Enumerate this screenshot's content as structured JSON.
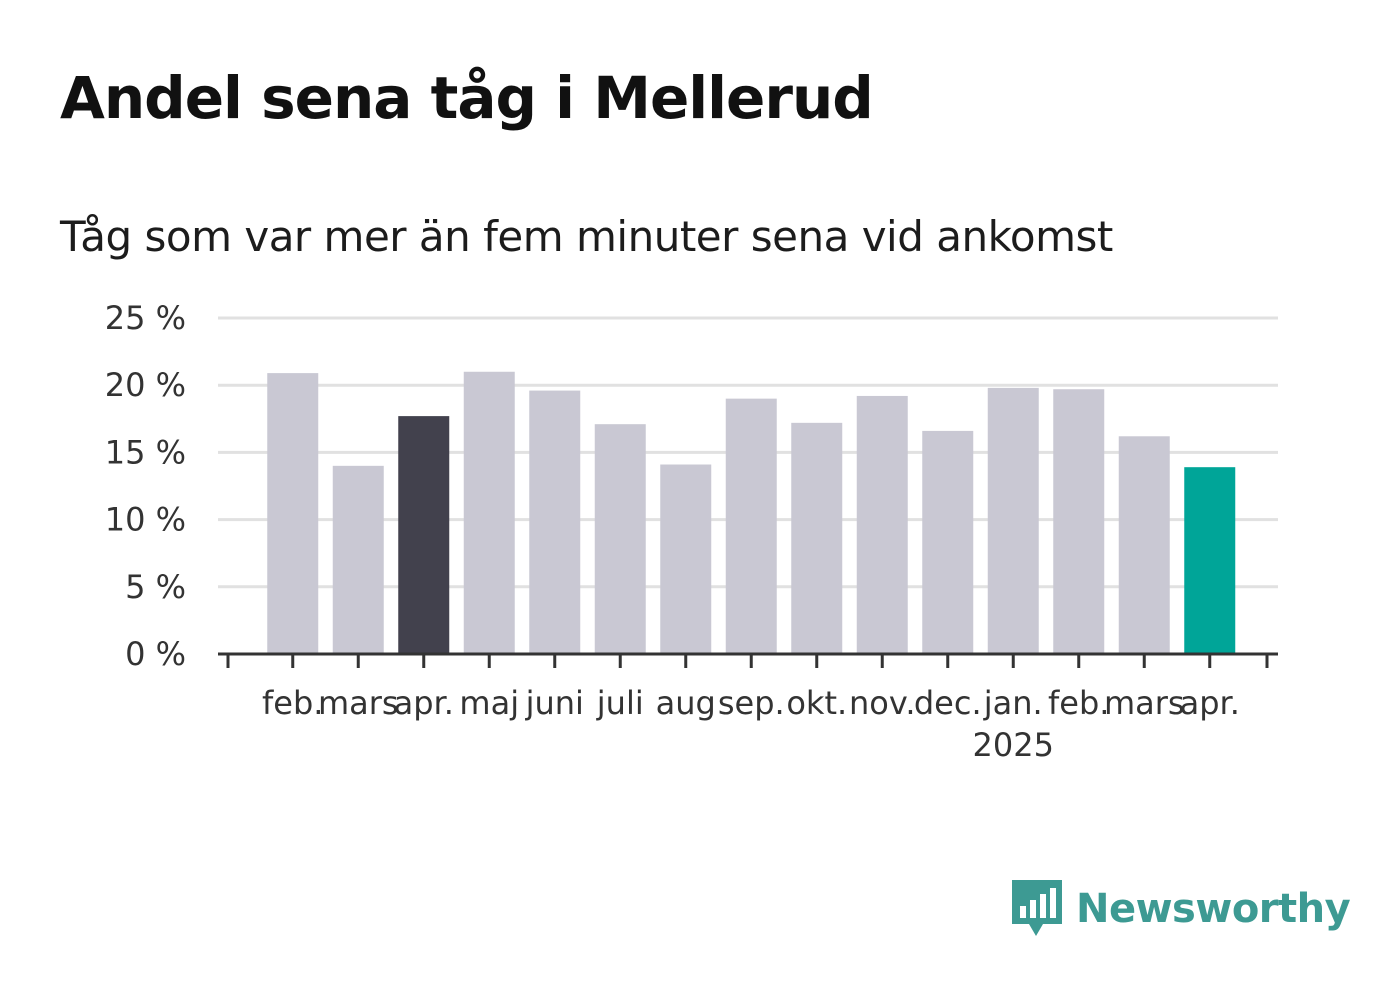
{
  "title": "Andel sena tåg i Mellerud",
  "subtitle": "Tåg som var mer än fem minuter sena vid ankomst",
  "logo": {
    "name": "Newsworthy",
    "icon": "newsworthy-chart-icon",
    "color": "#3d9a93"
  },
  "colors": {
    "default_bar": "#c9c8d3",
    "highlight_prev_year": "#42414d",
    "highlight_current": "#00a598",
    "grid": "#e1e1e1",
    "axis": "#333333"
  },
  "chart_data": {
    "type": "bar",
    "categories": [
      "feb.",
      "mars",
      "apr.",
      "maj",
      "juni",
      "juli",
      "aug",
      "sep.",
      "okt.",
      "nov.",
      "dec.",
      "jan.",
      "feb.",
      "mars",
      "apr."
    ],
    "year_labels": [
      {
        "index": 11,
        "label": "2025"
      }
    ],
    "values": [
      20.9,
      14.0,
      17.7,
      21.0,
      19.6,
      17.1,
      14.1,
      19.0,
      17.2,
      19.2,
      16.6,
      19.8,
      19.7,
      16.2,
      13.9
    ],
    "highlight": {
      "2": "highlight_prev_year",
      "14": "highlight_current"
    },
    "ylim": [
      0,
      25
    ],
    "yticks": [
      0,
      5,
      10,
      15,
      20,
      25
    ],
    "ytick_labels": [
      "0 %",
      "5 %",
      "10 %",
      "15 %",
      "20 %",
      "25 %"
    ],
    "xlabel": "",
    "ylabel": "",
    "grid": true
  }
}
